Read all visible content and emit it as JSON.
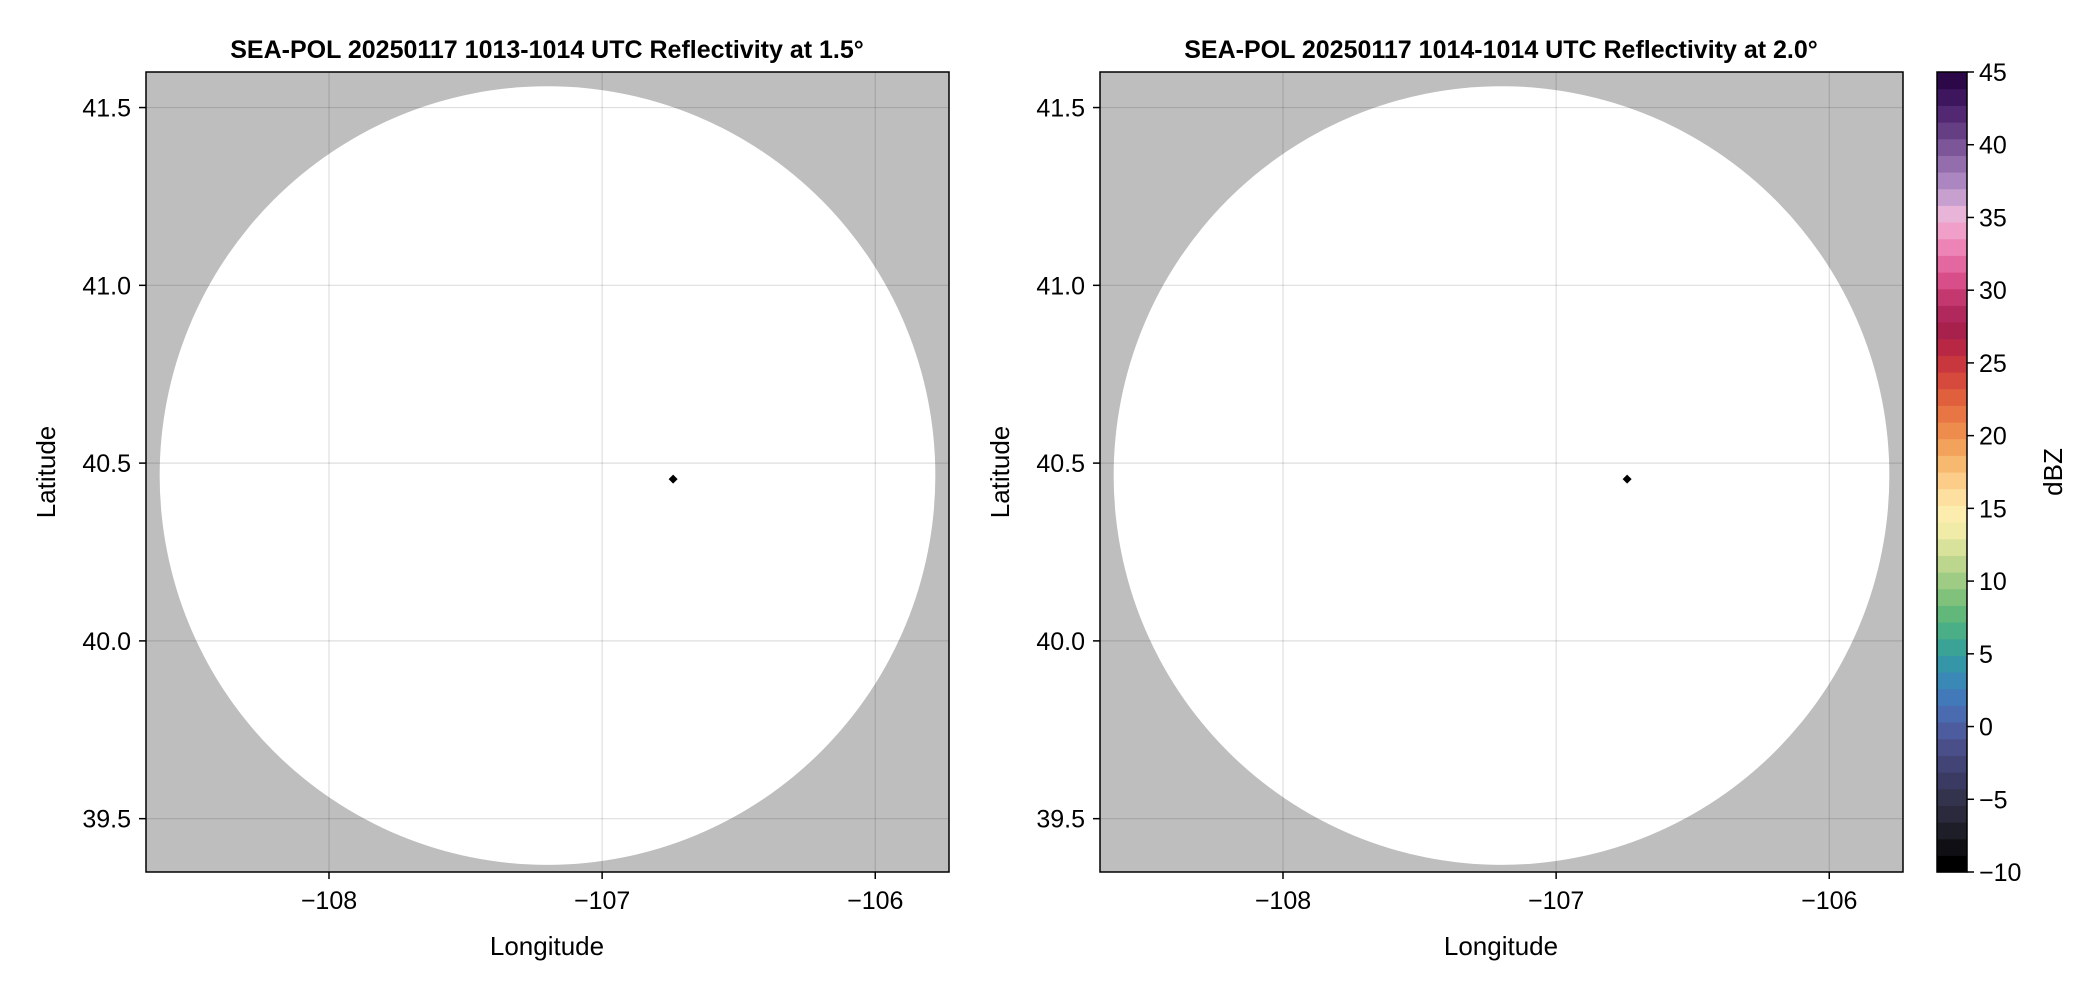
{
  "chart_data": [
    {
      "type": "heatmap",
      "title": "SEA-POL 20250117 1013-1014 UTC Reflectivity at 1.5°",
      "xlabel": "Longitude",
      "ylabel": "Latitude",
      "xlim": [
        -108.67,
        -105.73
      ],
      "ylim": [
        39.35,
        41.6
      ],
      "xticks": [
        -108,
        -107,
        -106
      ],
      "xtick_labels": [
        "−108",
        "−107",
        "−106"
      ],
      "yticks": [
        39.5,
        40.0,
        40.5,
        41.0,
        41.5
      ],
      "ytick_labels": [
        "39.5",
        "40.0",
        "40.5",
        "41.0",
        "41.5"
      ],
      "grid": true,
      "radar": {
        "lon": -106.74,
        "lat": 40.455,
        "coverage_center_lon": -107.2,
        "coverage_center_lat": 40.465,
        "coverage_radius_lon": 1.42,
        "coverage_radius_lat": 1.095
      },
      "outside_color": "#bebebe",
      "coverage_color": "#ffffff"
    },
    {
      "type": "heatmap",
      "title": "SEA-POL 20250117 1014-1014 UTC Reflectivity at 2.0°",
      "xlabel": "Longitude",
      "ylabel": "Latitude",
      "xlim": [
        -108.67,
        -105.73
      ],
      "ylim": [
        39.35,
        41.6
      ],
      "xticks": [
        -108,
        -107,
        -106
      ],
      "xtick_labels": [
        "−108",
        "−107",
        "−106"
      ],
      "yticks": [
        39.5,
        40.0,
        40.5,
        41.0,
        41.5
      ],
      "ytick_labels": [
        "39.5",
        "40.0",
        "40.5",
        "41.0",
        "41.5"
      ],
      "grid": true,
      "radar": {
        "lon": -106.74,
        "lat": 40.455,
        "coverage_center_lon": -107.2,
        "coverage_center_lat": 40.465,
        "coverage_radius_lon": 1.42,
        "coverage_radius_lat": 1.095
      },
      "outside_color": "#bebebe",
      "coverage_color": "#ffffff"
    }
  ],
  "colorbar": {
    "label": "dBZ",
    "min": -10,
    "max": 45,
    "ticks": [
      -10,
      -5,
      0,
      5,
      10,
      15,
      20,
      25,
      30,
      35,
      40,
      45
    ],
    "tick_labels": [
      "−10",
      "−5",
      "0",
      "5",
      "10",
      "15",
      "20",
      "25",
      "30",
      "35",
      "40",
      "45"
    ],
    "colors": [
      "#000000",
      "#101014",
      "#1e1e28",
      "#2a2a3c",
      "#33334e",
      "#3a3a62",
      "#424476",
      "#4a4f8a",
      "#4c5c9e",
      "#4a6bb0",
      "#4279b8",
      "#3a88b6",
      "#3596a8",
      "#3aa396",
      "#4aae86",
      "#62b87a",
      "#80c27c",
      "#9fcc84",
      "#bdd68e",
      "#d9e29a",
      "#f0eca8",
      "#fcecae",
      "#fde0a0",
      "#fbcd88",
      "#f7b870",
      "#f3a25c",
      "#ee8c4e",
      "#e87644",
      "#e0603e",
      "#d54a3c",
      "#c8363e",
      "#b82844",
      "#a8204c",
      "#b0285c",
      "#c43870",
      "#d84e88",
      "#e468a0",
      "#ec84b6",
      "#f0a0c8",
      "#e8b4d8",
      "#c8a0d0",
      "#ac86c0",
      "#946eac",
      "#7c5698",
      "#663e84",
      "#522872",
      "#3e165e",
      "#2c0848"
    ]
  }
}
